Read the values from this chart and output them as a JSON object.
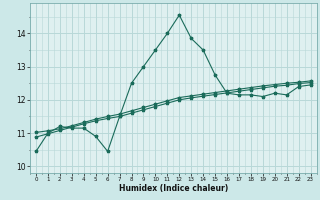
{
  "title": "",
  "xlabel": "Humidex (Indice chaleur)",
  "ylabel": "",
  "bg_color": "#cce8e8",
  "plot_bg_color": "#dff0f0",
  "grid_color_major": "#b8d8d8",
  "grid_color_minor": "#d0e8e8",
  "line_color": "#1a6b5a",
  "xlim": [
    -0.5,
    23.5
  ],
  "ylim": [
    9.8,
    14.9
  ],
  "xticks": [
    0,
    1,
    2,
    3,
    4,
    5,
    6,
    7,
    8,
    9,
    10,
    11,
    12,
    13,
    14,
    15,
    16,
    17,
    18,
    19,
    20,
    21,
    22,
    23
  ],
  "yticks": [
    10,
    11,
    12,
    13,
    14
  ],
  "curve1_x": [
    0,
    1,
    2,
    3,
    4,
    5,
    6,
    7,
    8,
    9,
    10,
    11,
    12,
    13,
    14,
    15,
    16,
    17,
    18,
    19,
    20,
    21,
    22,
    23
  ],
  "curve1_y": [
    10.45,
    11.0,
    11.2,
    11.15,
    11.15,
    10.9,
    10.45,
    11.5,
    12.5,
    13.0,
    13.5,
    14.0,
    14.55,
    13.85,
    13.5,
    12.75,
    12.2,
    12.15,
    12.15,
    12.1,
    12.2,
    12.15,
    12.4,
    12.45
  ],
  "curve2_x": [
    0,
    1,
    2,
    3,
    4,
    5,
    6,
    7,
    8,
    9,
    10,
    11,
    12,
    13,
    14,
    15,
    16,
    17,
    18,
    19,
    20,
    21,
    22,
    23
  ],
  "curve2_y": [
    10.88,
    10.98,
    11.08,
    11.18,
    11.28,
    11.37,
    11.44,
    11.5,
    11.6,
    11.7,
    11.8,
    11.9,
    12.0,
    12.06,
    12.11,
    12.16,
    12.21,
    12.26,
    12.31,
    12.36,
    12.41,
    12.44,
    12.49,
    12.52
  ],
  "curve3_x": [
    0,
    1,
    2,
    3,
    4,
    5,
    6,
    7,
    8,
    9,
    10,
    11,
    12,
    13,
    14,
    15,
    16,
    17,
    18,
    19,
    20,
    21,
    22,
    23
  ],
  "curve3_y": [
    11.02,
    11.07,
    11.13,
    11.22,
    11.32,
    11.42,
    11.5,
    11.57,
    11.67,
    11.77,
    11.87,
    11.97,
    12.07,
    12.12,
    12.17,
    12.22,
    12.27,
    12.32,
    12.37,
    12.42,
    12.46,
    12.5,
    12.53,
    12.57
  ]
}
